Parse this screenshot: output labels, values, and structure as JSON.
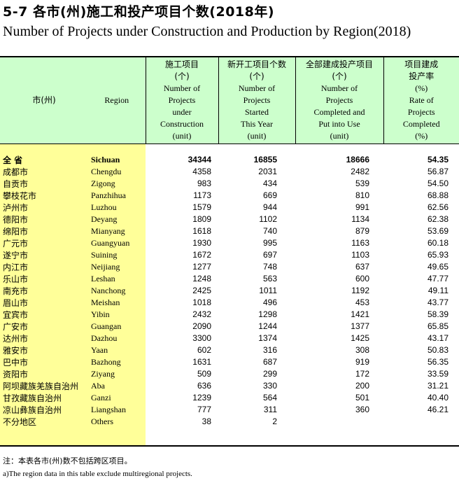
{
  "title_cn": "5-7  各市(州)施工和投产项目个数(2018年)",
  "title_en": "Number of Projects under Construction and Production by Region(2018)",
  "headers": {
    "city": "市(州)",
    "region": "Region",
    "col1_cn1": "施工项目",
    "col1_cn2": "(个)",
    "col1_en": [
      "Number of",
      "Projects",
      "under",
      "Construction",
      "(unit)"
    ],
    "col2_cn1": "新开工项目个数",
    "col2_cn2": "(个)",
    "col2_en": [
      "Number of",
      "Projects",
      "Started",
      "This Year",
      "(unit)"
    ],
    "col3_cn1": "全部建成投产项目",
    "col3_cn2": "(个)",
    "col3_en": [
      "Number of",
      "Projects",
      "Completed and",
      "Put into Use",
      "(unit)"
    ],
    "col4_cn1": "项目建成",
    "col4_cn2": "投产率",
    "col4_en": [
      "(%)",
      "Rate of",
      "Projects",
      "Completed",
      "(%)"
    ]
  },
  "rows": [
    {
      "cn": "全  省",
      "en": "Sichuan",
      "c1": "34344",
      "c2": "16855",
      "c3": "18666",
      "c4": "54.35"
    },
    {
      "cn": "成都市",
      "en": "Chengdu",
      "c1": "4358",
      "c2": "2031",
      "c3": "2482",
      "c4": "56.87"
    },
    {
      "cn": "自贡市",
      "en": "Zigong",
      "c1": "983",
      "c2": "434",
      "c3": "539",
      "c4": "54.50"
    },
    {
      "cn": "攀枝花市",
      "en": "Panzhihua",
      "c1": "1173",
      "c2": "669",
      "c3": "810",
      "c4": "68.88"
    },
    {
      "cn": "泸州市",
      "en": "Luzhou",
      "c1": "1579",
      "c2": "944",
      "c3": "991",
      "c4": "62.56"
    },
    {
      "cn": "德阳市",
      "en": "Deyang",
      "c1": "1809",
      "c2": "1102",
      "c3": "1134",
      "c4": "62.38"
    },
    {
      "cn": "绵阳市",
      "en": "Mianyang",
      "c1": "1618",
      "c2": "740",
      "c3": "879",
      "c4": "53.69"
    },
    {
      "cn": "广元市",
      "en": "Guangyuan",
      "c1": "1930",
      "c2": "995",
      "c3": "1163",
      "c4": "60.18"
    },
    {
      "cn": "遂宁市",
      "en": "Suining",
      "c1": "1672",
      "c2": "697",
      "c3": "1103",
      "c4": "65.93"
    },
    {
      "cn": "内江市",
      "en": "Neijiang",
      "c1": "1277",
      "c2": "748",
      "c3": "637",
      "c4": "49.65"
    },
    {
      "cn": "乐山市",
      "en": "Leshan",
      "c1": "1248",
      "c2": "563",
      "c3": "600",
      "c4": "47.77"
    },
    {
      "cn": "南充市",
      "en": "Nanchong",
      "c1": "2425",
      "c2": "1011",
      "c3": "1192",
      "c4": "49.11"
    },
    {
      "cn": "眉山市",
      "en": "Meishan",
      "c1": "1018",
      "c2": "496",
      "c3": "453",
      "c4": "43.77"
    },
    {
      "cn": "宜宾市",
      "en": "Yibin",
      "c1": "2432",
      "c2": "1298",
      "c3": "1421",
      "c4": "58.39"
    },
    {
      "cn": "广安市",
      "en": "Guangan",
      "c1": "2090",
      "c2": "1244",
      "c3": "1377",
      "c4": "65.85"
    },
    {
      "cn": "达州市",
      "en": "Dazhou",
      "c1": "3300",
      "c2": "1374",
      "c3": "1425",
      "c4": "43.17"
    },
    {
      "cn": "雅安市",
      "en": "Yaan",
      "c1": "602",
      "c2": "316",
      "c3": "308",
      "c4": "50.83"
    },
    {
      "cn": "巴中市",
      "en": "Bazhong",
      "c1": "1631",
      "c2": "687",
      "c3": "919",
      "c4": "56.35"
    },
    {
      "cn": "资阳市",
      "en": "Ziyang",
      "c1": "509",
      "c2": "299",
      "c3": "172",
      "c4": "33.59"
    },
    {
      "cn": "阿坝藏族羌族自治州",
      "en": "Aba",
      "c1": "636",
      "c2": "330",
      "c3": "200",
      "c4": "31.21"
    },
    {
      "cn": "甘孜藏族自治州",
      "en": "Ganzi",
      "c1": "1239",
      "c2": "564",
      "c3": "501",
      "c4": "40.40"
    },
    {
      "cn": "凉山彝族自治州",
      "en": "Liangshan",
      "c1": "777",
      "c2": "311",
      "c3": "360",
      "c4": "46.21"
    },
    {
      "cn": "不分地区",
      "en": "Others",
      "c1": "38",
      "c2": "2",
      "c3": "",
      "c4": ""
    }
  ],
  "notes": {
    "cn": "注：本表各市(州)数不包括跨区项目。",
    "en": "a)The region data in this table exclude multiregional projects."
  }
}
